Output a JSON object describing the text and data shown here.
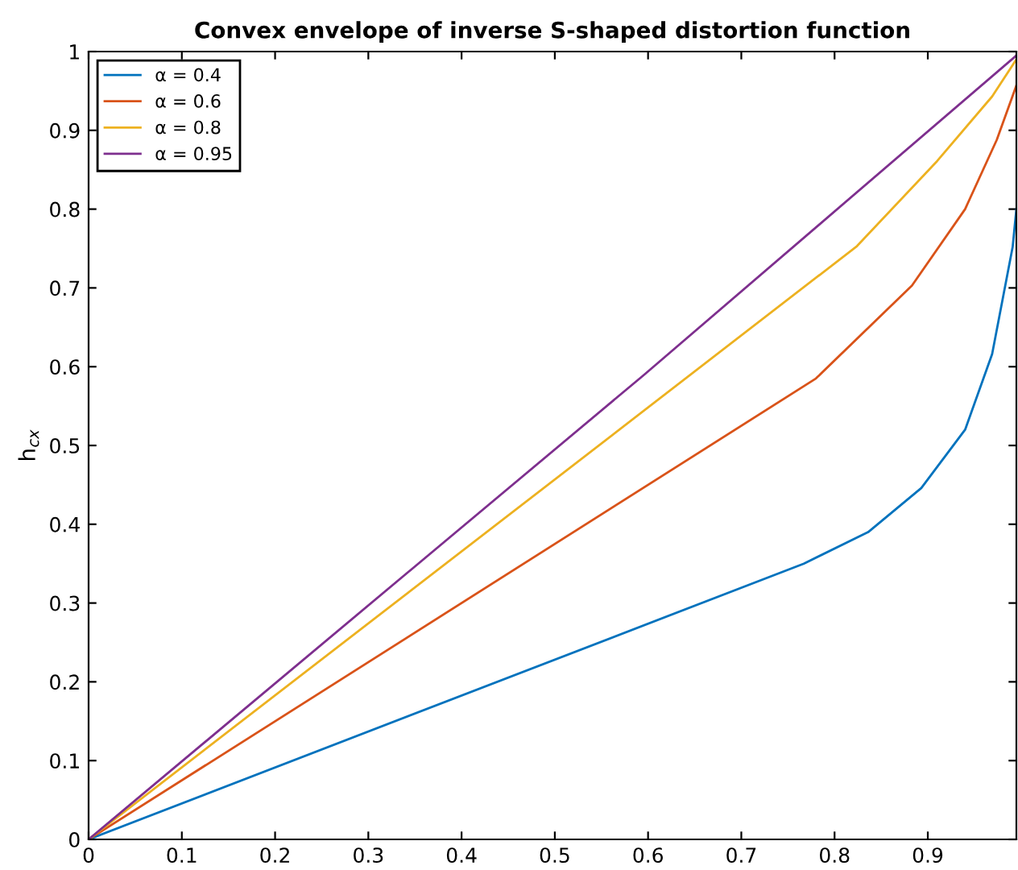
{
  "chart_data": {
    "type": "line",
    "title": "Convex envelope of inverse S-shaped distortion function",
    "ylabel": "h$_{cx}$",
    "xlim": [
      0,
      0.995
    ],
    "ylim": [
      0,
      1
    ],
    "xticks": [
      0,
      0.1,
      0.2,
      0.3,
      0.4,
      0.5,
      0.6,
      0.7,
      0.8,
      0.9
    ],
    "yticks": [
      0,
      0.1,
      0.2,
      0.3,
      0.4,
      0.5,
      0.6,
      0.7,
      0.8,
      0.9,
      1
    ],
    "legend": "top left",
    "grid": false,
    "line_style": "solid",
    "series": [
      {
        "name": "α = 0.4",
        "color": "#0072bd",
        "x": [
          0,
          0.767,
          0.836,
          0.893,
          0.94,
          0.969,
          0.991,
          0.995
        ],
        "values": [
          0,
          0.35,
          0.39,
          0.446,
          0.52,
          0.616,
          0.752,
          0.8
        ]
      },
      {
        "name": "α = 0.6",
        "color": "#d95319",
        "x": [
          0,
          0.78,
          0.883,
          0.94,
          0.974,
          0.995
        ],
        "values": [
          0,
          0.585,
          0.703,
          0.8,
          0.888,
          0.957
        ]
      },
      {
        "name": "α = 0.8",
        "color": "#edb120",
        "x": [
          0,
          0.824,
          0.91,
          0.969,
          0.995
        ],
        "values": [
          0,
          0.753,
          0.861,
          0.943,
          0.99
        ]
      },
      {
        "name": "α = 0.95",
        "color": "#7e2f8e",
        "x": [
          0,
          0.595,
          0.995
        ],
        "values": [
          0,
          0.589,
          0.995
        ]
      }
    ]
  }
}
